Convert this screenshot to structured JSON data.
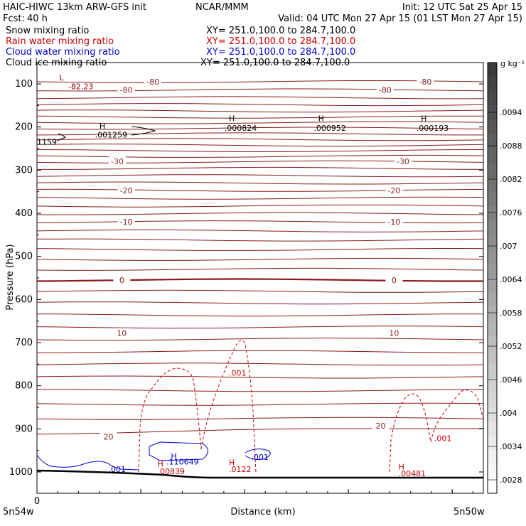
{
  "header": {
    "model": "HAIC-HIWC 13km ARW-GFS init",
    "org": "NCAR/MMM",
    "init": "Init: 12 UTC Sat 25 Apr 15",
    "fcst_label": "Fcst:",
    "fcst_value": "40 h",
    "valid": "Valid: 04 UTC Mon 27 Apr 15 (01 LST Mon 27 Apr 15)"
  },
  "fields": [
    {
      "name": "Snow mixing ratio",
      "xy": "XY= 251.0,100.0 to 284.7,100.0",
      "color": "#000000"
    },
    {
      "name": "Rain water mixing ratio",
      "xy": "XY= 251.0,100.0 to 284.7,100.0",
      "color": "#d00000"
    },
    {
      "name": "Cloud water mixing ratio",
      "xy": "XY= 251.0,100.0 to 284.7,100.0",
      "color": "#0000cc"
    },
    {
      "name": "Cloud ice mixing ratio",
      "xy": "XY= 251.0,100.0 to 284.7,100.0",
      "color": "#000000"
    }
  ],
  "chart_data": {
    "type": "contour-cross-section",
    "xlabel": "Distance (km)",
    "ylabel": "Pressure (hPa)",
    "x_tick_labels": [
      "0"
    ],
    "x_end_labels": [
      "5n54w",
      "5n50w"
    ],
    "y_ticks": [
      100,
      200,
      300,
      400,
      500,
      600,
      700,
      800,
      900,
      1000
    ],
    "ylim": [
      50,
      1050
    ],
    "colorbar": {
      "unit": "g kg⁻¹",
      "labels": [
        ".0094",
        ".0088",
        ".0082",
        ".0076",
        ".007",
        ".0064",
        ".0058",
        ".0052",
        ".0046",
        ".004",
        ".0034",
        ".0028"
      ]
    },
    "temperature_contour_labels": [
      {
        "text": "-80",
        "p": 95,
        "x": 0.26
      },
      {
        "text": "-80",
        "p": 95,
        "x": 0.87
      },
      {
        "text": "-80",
        "p": 114,
        "x": 0.2
      },
      {
        "text": "-80",
        "p": 114,
        "x": 0.78
      },
      {
        "text": "-30",
        "p": 280,
        "x": 0.18
      },
      {
        "text": "-30",
        "p": 280,
        "x": 0.82
      },
      {
        "text": "-20",
        "p": 347,
        "x": 0.2
      },
      {
        "text": "-20",
        "p": 347,
        "x": 0.8
      },
      {
        "text": "-10",
        "p": 420,
        "x": 0.2
      },
      {
        "text": "-10",
        "p": 420,
        "x": 0.8
      },
      {
        "text": "0",
        "p": 555,
        "x": 0.19
      },
      {
        "text": "0",
        "p": 555,
        "x": 0.8
      },
      {
        "text": "10",
        "p": 678,
        "x": 0.19
      },
      {
        "text": "10",
        "p": 678,
        "x": 0.8
      },
      {
        "text": "20",
        "p": 918,
        "x": 0.16
      },
      {
        "text": "20",
        "p": 893,
        "x": 0.77
      }
    ],
    "extrema_labels": [
      {
        "text": "L",
        "p": 85,
        "x": 0.05,
        "color": "#8b0000"
      },
      {
        "text": "-82.23",
        "p": 106,
        "x": 0.07,
        "color": "#8b0000"
      },
      {
        "text": "H",
        "p": 197,
        "x": 0.14,
        "color": "#000000"
      },
      {
        "text": "H",
        "p": 180,
        "x": 0.43,
        "color": "#000000"
      },
      {
        "text": "H",
        "p": 180,
        "x": 0.63,
        "color": "#000000"
      },
      {
        "text": "H",
        "p": 180,
        "x": 0.86,
        "color": "#000000"
      },
      {
        "text": ".001259",
        "p": 218,
        "x": 0.13,
        "color": "#000000"
      },
      {
        "text": ".000824",
        "p": 202,
        "x": 0.42,
        "color": "#000000"
      },
      {
        "text": ".000952",
        "p": 202,
        "x": 0.62,
        "color": "#000000"
      },
      {
        "text": ".000193",
        "p": 202,
        "x": 0.85,
        "color": "#000000"
      },
      {
        "text": "1159",
        "p": 234,
        "x": 0.0,
        "color": "#000000"
      },
      {
        "text": ".001",
        "p": 770,
        "x": 0.43,
        "color": "#d00000"
      },
      {
        "text": ".001",
        "p": 922,
        "x": 0.89,
        "color": "#d00000"
      },
      {
        "text": "H",
        "p": 963,
        "x": 0.3,
        "color": "#0000cc"
      },
      {
        "text": ".110649",
        "p": 976,
        "x": 0.29,
        "color": "#0000cc"
      },
      {
        "text": ".001",
        "p": 965,
        "x": 0.48,
        "color": "#0000cc"
      },
      {
        "text": ".001",
        "p": 993,
        "x": 0.16,
        "color": "#0000cc"
      },
      {
        "text": "H",
        "p": 981,
        "x": 0.27,
        "color": "#d00000"
      },
      {
        "text": ".00839",
        "p": 998,
        "x": 0.27,
        "color": "#d00000"
      },
      {
        "text": "H",
        "p": 978,
        "x": 0.43,
        "color": "#d00000"
      },
      {
        "text": ".0122",
        "p": 993,
        "x": 0.43,
        "color": "#d00000"
      },
      {
        "text": "H",
        "p": 988,
        "x": 0.81,
        "color": "#d00000"
      },
      {
        "text": ".00481",
        "p": 1003,
        "x": 0.81,
        "color": "#d00000"
      }
    ]
  }
}
